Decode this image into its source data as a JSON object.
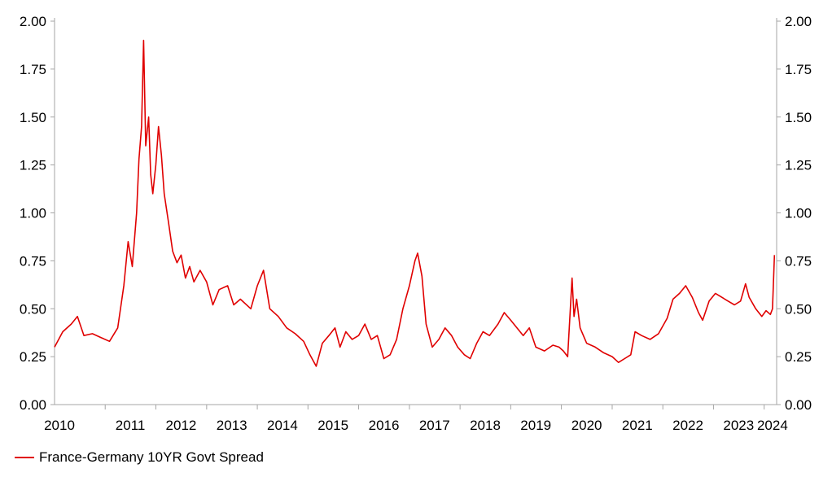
{
  "chart_data": {
    "type": "line",
    "title": "",
    "xlabel": "",
    "ylabel": "",
    "ylim": [
      0,
      2.0
    ],
    "xlim": [
      "2010-01-01",
      "2024-03-31"
    ],
    "grid": false,
    "legend_position": "bottom-left",
    "y_ticks": [
      "0.00",
      "0.25",
      "0.50",
      "0.75",
      "1.00",
      "1.25",
      "1.50",
      "1.75",
      "2.00"
    ],
    "x_ticks": [
      "2010",
      "2011",
      "2012",
      "2013",
      "2014",
      "2015",
      "2016",
      "2017",
      "2018",
      "2019",
      "2020",
      "2021",
      "2022",
      "2023",
      "2024"
    ],
    "series": [
      {
        "name": "France-Germany 10YR Govt Spread",
        "color": "#e00000",
        "points": [
          [
            "2010-01-01",
            0.3
          ],
          [
            "2010-03-01",
            0.38
          ],
          [
            "2010-05-01",
            0.42
          ],
          [
            "2010-06-15",
            0.46
          ],
          [
            "2010-08-01",
            0.36
          ],
          [
            "2010-10-01",
            0.37
          ],
          [
            "2010-12-01",
            0.35
          ],
          [
            "2011-02-01",
            0.33
          ],
          [
            "2011-04-01",
            0.4
          ],
          [
            "2011-05-15",
            0.62
          ],
          [
            "2011-06-15",
            0.85
          ],
          [
            "2011-07-15",
            0.72
          ],
          [
            "2011-08-15",
            1.0
          ],
          [
            "2011-09-01",
            1.28
          ],
          [
            "2011-09-20",
            1.45
          ],
          [
            "2011-10-05",
            1.9
          ],
          [
            "2011-10-20",
            1.35
          ],
          [
            "2011-11-10",
            1.5
          ],
          [
            "2011-11-25",
            1.2
          ],
          [
            "2011-12-10",
            1.1
          ],
          [
            "2012-01-01",
            1.25
          ],
          [
            "2012-01-20",
            1.45
          ],
          [
            "2012-02-10",
            1.3
          ],
          [
            "2012-03-01",
            1.1
          ],
          [
            "2012-04-01",
            0.95
          ],
          [
            "2012-05-01",
            0.8
          ],
          [
            "2012-06-01",
            0.74
          ],
          [
            "2012-07-01",
            0.78
          ],
          [
            "2012-08-01",
            0.66
          ],
          [
            "2012-09-01",
            0.72
          ],
          [
            "2012-10-01",
            0.64
          ],
          [
            "2012-11-15",
            0.7
          ],
          [
            "2013-01-01",
            0.64
          ],
          [
            "2013-02-15",
            0.52
          ],
          [
            "2013-04-01",
            0.6
          ],
          [
            "2013-06-01",
            0.62
          ],
          [
            "2013-07-15",
            0.52
          ],
          [
            "2013-09-01",
            0.55
          ],
          [
            "2013-11-15",
            0.5
          ],
          [
            "2014-01-01",
            0.62
          ],
          [
            "2014-02-15",
            0.7
          ],
          [
            "2014-04-01",
            0.5
          ],
          [
            "2014-06-01",
            0.46
          ],
          [
            "2014-08-01",
            0.4
          ],
          [
            "2014-10-01",
            0.37
          ],
          [
            "2014-12-01",
            0.33
          ],
          [
            "2015-01-15",
            0.26
          ],
          [
            "2015-03-01",
            0.2
          ],
          [
            "2015-04-15",
            0.32
          ],
          [
            "2015-06-01",
            0.36
          ],
          [
            "2015-07-15",
            0.4
          ],
          [
            "2015-08-20",
            0.3
          ],
          [
            "2015-10-01",
            0.38
          ],
          [
            "2015-11-15",
            0.34
          ],
          [
            "2016-01-01",
            0.36
          ],
          [
            "2016-02-15",
            0.42
          ],
          [
            "2016-04-01",
            0.34
          ],
          [
            "2016-05-15",
            0.36
          ],
          [
            "2016-07-01",
            0.24
          ],
          [
            "2016-08-15",
            0.26
          ],
          [
            "2016-10-01",
            0.34
          ],
          [
            "2016-11-15",
            0.5
          ],
          [
            "2017-01-01",
            0.62
          ],
          [
            "2017-02-10",
            0.75
          ],
          [
            "2017-03-01",
            0.79
          ],
          [
            "2017-04-01",
            0.67
          ],
          [
            "2017-05-01",
            0.42
          ],
          [
            "2017-06-15",
            0.3
          ],
          [
            "2017-08-01",
            0.34
          ],
          [
            "2017-09-15",
            0.4
          ],
          [
            "2017-11-01",
            0.36
          ],
          [
            "2017-12-15",
            0.3
          ],
          [
            "2018-02-01",
            0.26
          ],
          [
            "2018-03-15",
            0.24
          ],
          [
            "2018-05-01",
            0.32
          ],
          [
            "2018-06-15",
            0.38
          ],
          [
            "2018-08-01",
            0.36
          ],
          [
            "2018-10-01",
            0.42
          ],
          [
            "2018-11-15",
            0.48
          ],
          [
            "2019-01-01",
            0.44
          ],
          [
            "2019-02-15",
            0.4
          ],
          [
            "2019-04-01",
            0.36
          ],
          [
            "2019-05-15",
            0.4
          ],
          [
            "2019-07-01",
            0.3
          ],
          [
            "2019-09-01",
            0.28
          ],
          [
            "2019-11-01",
            0.31
          ],
          [
            "2019-12-15",
            0.3
          ],
          [
            "2020-01-15",
            0.28
          ],
          [
            "2020-02-15",
            0.25
          ],
          [
            "2020-03-18",
            0.66
          ],
          [
            "2020-04-01",
            0.46
          ],
          [
            "2020-04-20",
            0.55
          ],
          [
            "2020-05-15",
            0.4
          ],
          [
            "2020-07-01",
            0.32
          ],
          [
            "2020-09-01",
            0.3
          ],
          [
            "2020-11-01",
            0.27
          ],
          [
            "2021-01-01",
            0.25
          ],
          [
            "2021-02-15",
            0.22
          ],
          [
            "2021-04-01",
            0.24
          ],
          [
            "2021-05-15",
            0.26
          ],
          [
            "2021-06-15",
            0.38
          ],
          [
            "2021-08-01",
            0.36
          ],
          [
            "2021-10-01",
            0.34
          ],
          [
            "2021-12-01",
            0.37
          ],
          [
            "2022-02-01",
            0.45
          ],
          [
            "2022-03-15",
            0.55
          ],
          [
            "2022-05-01",
            0.58
          ],
          [
            "2022-06-15",
            0.62
          ],
          [
            "2022-08-01",
            0.56
          ],
          [
            "2022-09-15",
            0.48
          ],
          [
            "2022-10-15",
            0.44
          ],
          [
            "2022-12-01",
            0.54
          ],
          [
            "2023-01-15",
            0.58
          ],
          [
            "2023-03-01",
            0.56
          ],
          [
            "2023-04-15",
            0.54
          ],
          [
            "2023-06-01",
            0.52
          ],
          [
            "2023-07-15",
            0.54
          ],
          [
            "2023-08-20",
            0.63
          ],
          [
            "2023-09-15",
            0.56
          ],
          [
            "2023-11-01",
            0.5
          ],
          [
            "2023-12-15",
            0.46
          ],
          [
            "2024-01-15",
            0.49
          ],
          [
            "2024-02-15",
            0.47
          ],
          [
            "2024-03-01",
            0.5
          ],
          [
            "2024-03-15",
            0.78
          ]
        ]
      }
    ]
  }
}
